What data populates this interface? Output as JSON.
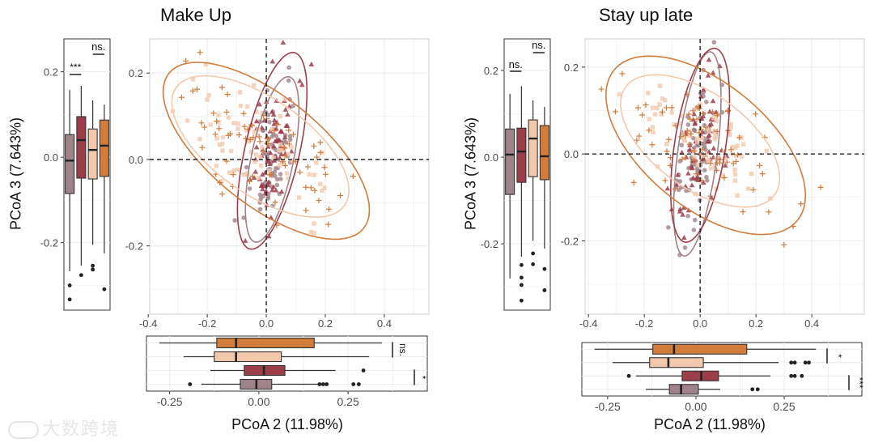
{
  "watermark": "大数跨境",
  "colors": {
    "mauve": "#a0838a",
    "darkred": "#9e3d4a",
    "peach": "#f3c9ae",
    "orange": "#d17c3b"
  },
  "chart_data": [
    {
      "type": "scatter",
      "title": "Make Up",
      "xlabel": "PCoA 2 (11.98%)",
      "ylabel": "PCoA 3 (7.643%)",
      "xlim": [
        -0.395,
        0.551
      ],
      "ylim": [
        -0.358,
        0.279
      ],
      "xticks": [
        {
          "v": -0.4,
          "label": "-0.4"
        },
        {
          "v": -0.2,
          "label": "-0.2"
        },
        {
          "v": 0,
          "label": "0.0"
        },
        {
          "v": 0.2,
          "label": "0.2"
        },
        {
          "v": 0.4,
          "label": "0.4"
        }
      ],
      "yticks": [
        {
          "v": 0.2,
          "label": "0.2"
        },
        {
          "v": 0,
          "label": "0.0"
        },
        {
          "v": -0.2,
          "label": "-0.2"
        }
      ],
      "reference_lines": {
        "x": 0,
        "y": 0,
        "style": "dashed"
      },
      "groups": [
        {
          "color": "mauve",
          "shape": "circle",
          "ellipse": {
            "center": [
              0.02,
              0.0
            ],
            "a": 0.2,
            "b": 0.07,
            "angle": 72
          }
        },
        {
          "color": "darkred",
          "shape": "triangle",
          "ellipse": {
            "center": [
              0.02,
              0.02
            ],
            "a": 0.24,
            "b": 0.09,
            "angle": 70
          }
        },
        {
          "color": "peach",
          "shape": "square",
          "ellipse": {
            "center": [
              -0.02,
              0.03
            ],
            "a": 0.32,
            "b": 0.12,
            "angle": -22
          }
        },
        {
          "color": "orange",
          "shape": "plus",
          "ellipse": {
            "center": [
              0.0,
              0.02
            ],
            "a": 0.38,
            "b": 0.14,
            "angle": -25
          }
        }
      ],
      "boxplot_y": {
        "ylim": [
          -0.358,
          0.277
        ],
        "yticks": [
          {
            "v": 0.2,
            "label": "0.2"
          },
          {
            "v": 0,
            "label": "0.0"
          },
          {
            "v": -0.2,
            "label": "-0.2"
          }
        ],
        "boxes": [
          {
            "color": "mauve",
            "lw": -0.267,
            "q1": -0.085,
            "med": -0.008,
            "q3": 0.053,
            "uw": 0.157,
            "outliers": [
              -0.3,
              -0.333
            ]
          },
          {
            "color": "darkred",
            "lw": -0.254,
            "q1": -0.049,
            "med": 0.04,
            "q3": 0.095,
            "uw": 0.167,
            "outliers": [
              -0.276
            ]
          },
          {
            "color": "peach",
            "lw": -0.205,
            "q1": -0.051,
            "med": 0.017,
            "q3": 0.066,
            "uw": 0.133,
            "outliers": [
              -0.254,
              -0.263
            ]
          },
          {
            "color": "orange",
            "lw": -0.225,
            "q1": -0.045,
            "med": 0.027,
            "q3": 0.087,
            "uw": 0.123,
            "outliers": [
              -0.309
            ]
          }
        ],
        "significance": [
          {
            "pair": [
              0,
              1
            ],
            "label": "***"
          },
          {
            "pair": [
              2,
              3
            ],
            "label": "ns."
          }
        ]
      },
      "boxplot_x": {
        "xlim": [
          -0.315,
          0.472
        ],
        "xticks": [
          {
            "v": -0.25,
            "label": "-0.25"
          },
          {
            "v": 0,
            "label": "0.00"
          },
          {
            "v": 0.25,
            "label": "0.25"
          }
        ],
        "boxes": [
          {
            "color": "orange",
            "lw": -0.279,
            "q1": -0.118,
            "med": -0.064,
            "q3": 0.155,
            "uw": 0.345,
            "outliers": []
          },
          {
            "color": "peach",
            "lw": -0.211,
            "q1": -0.125,
            "med": -0.064,
            "q3": 0.063,
            "uw": 0.309,
            "outliers": []
          },
          {
            "color": "darkred",
            "lw": -0.136,
            "q1": -0.041,
            "med": 0.014,
            "q3": 0.073,
            "uw": 0.215,
            "outliers": [
              0.293
            ]
          },
          {
            "color": "mauve",
            "lw": -0.161,
            "q1": -0.052,
            "med": -0.007,
            "q3": 0.036,
            "uw": 0.166,
            "outliers": [
              -0.193,
              0.17,
              0.18,
              0.19,
              0.265,
              0.28
            ]
          }
        ],
        "significance": [
          {
            "pair": [
              0,
              1
            ],
            "label": "ns."
          },
          {
            "pair": [
              2,
              3
            ],
            "label": "*"
          }
        ]
      }
    },
    {
      "type": "scatter",
      "title": "Stay up late",
      "xlabel": "PCoA 2 (11.98%)",
      "ylabel": "PCoA 3 (7.643%)",
      "xlim": [
        -0.412,
        0.588
      ],
      "ylim": [
        -0.369,
        0.265
      ],
      "xticks": [
        {
          "v": -0.4,
          "label": "-0.4"
        },
        {
          "v": -0.2,
          "label": "-0.2"
        },
        {
          "v": 0,
          "label": "0.0"
        },
        {
          "v": 0.2,
          "label": "0.2"
        },
        {
          "v": 0.4,
          "label": "0.4"
        }
      ],
      "yticks": [
        {
          "v": 0.2,
          "label": "0.2"
        },
        {
          "v": 0,
          "label": "0.0"
        },
        {
          "v": -0.2,
          "label": "-0.2"
        }
      ],
      "reference_lines": {
        "x": 0,
        "y": 0,
        "style": "dashed"
      },
      "groups": [
        {
          "color": "mauve",
          "shape": "circle",
          "ellipse": {
            "center": [
              -0.01,
              0.0
            ],
            "a": 0.24,
            "b": 0.07,
            "angle": 78
          }
        },
        {
          "color": "darkred",
          "shape": "triangle",
          "ellipse": {
            "center": [
              0.0,
              0.02
            ],
            "a": 0.23,
            "b": 0.09,
            "angle": 75
          }
        },
        {
          "color": "peach",
          "shape": "square",
          "ellipse": {
            "center": [
              0.0,
              0.03
            ],
            "a": 0.3,
            "b": 0.12,
            "angle": -20
          }
        },
        {
          "color": "orange",
          "shape": "plus",
          "ellipse": {
            "center": [
              0.02,
              0.02
            ],
            "a": 0.38,
            "b": 0.16,
            "angle": -22
          }
        }
      ],
      "boxplot_y": {
        "ylim": [
          -0.353,
          0.273
        ],
        "yticks": [
          {
            "v": 0.2,
            "label": "0.2"
          },
          {
            "v": 0,
            "label": "0.0"
          },
          {
            "v": -0.2,
            "label": "-0.2"
          }
        ],
        "boxes": [
          {
            "color": "mauve",
            "lw": -0.28,
            "q1": -0.086,
            "med": 0.006,
            "q3": 0.065,
            "uw": 0.146,
            "outliers": []
          },
          {
            "color": "darkred",
            "lw": -0.23,
            "q1": -0.058,
            "med": 0.013,
            "q3": 0.067,
            "uw": 0.164,
            "outliers": [
              -0.249,
              -0.278,
              -0.295,
              -0.331
            ]
          },
          {
            "color": "peach",
            "lw": -0.193,
            "q1": -0.045,
            "med": 0.043,
            "q3": 0.086,
            "uw": 0.131,
            "outliers": [
              -0.222,
              -0.247
            ]
          },
          {
            "color": "orange",
            "lw": -0.211,
            "q1": -0.052,
            "med": 0.002,
            "q3": 0.073,
            "uw": 0.116,
            "outliers": [
              -0.258,
              -0.307
            ]
          }
        ],
        "significance": [
          {
            "pair": [
              0,
              1
            ],
            "label": "ns."
          },
          {
            "pair": [
              2,
              3
            ],
            "label": "ns."
          }
        ]
      },
      "boxplot_x": {
        "xlim": [
          -0.323,
          0.47
        ],
        "xticks": [
          {
            "v": -0.25,
            "label": "-0.25"
          },
          {
            "v": 0,
            "label": "0.00"
          },
          {
            "v": 0.25,
            "label": "0.25"
          }
        ],
        "boxes": [
          {
            "color": "orange",
            "lw": -0.287,
            "q1": -0.122,
            "med": -0.062,
            "q3": 0.144,
            "uw": 0.34,
            "outliers": []
          },
          {
            "color": "peach",
            "lw": -0.236,
            "q1": -0.131,
            "med": -0.078,
            "q3": 0.021,
            "uw": 0.234,
            "outliers": [
              0.27,
              0.28,
              0.31,
              0.32
            ]
          },
          {
            "color": "darkred",
            "lw": -0.17,
            "q1": -0.039,
            "med": 0.015,
            "q3": 0.064,
            "uw": 0.211,
            "outliers": [
              -0.19,
              0.27,
              0.28,
              0.3
            ]
          },
          {
            "color": "mauve",
            "lw": -0.142,
            "q1": -0.075,
            "med": -0.042,
            "q3": 0.007,
            "uw": 0.069,
            "outliers": [
              0.16,
              0.175
            ]
          }
        ],
        "significance": [
          {
            "pair": [
              0,
              1
            ],
            "label": "*"
          },
          {
            "pair": [
              2,
              3
            ],
            "label": "***"
          }
        ]
      }
    }
  ]
}
